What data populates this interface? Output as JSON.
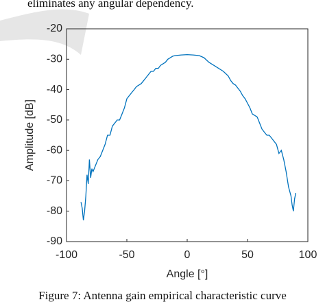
{
  "header_text": "eliminates any angular dependency.",
  "caption": "Figure 7: Antenna gain empirical characteristic curve",
  "chart_data": {
    "type": "line",
    "xlabel": "Angle [°]",
    "ylabel": "Amplitude [dB]",
    "xlim": [
      -100,
      100
    ],
    "ylim": [
      -90,
      -20
    ],
    "xticks": [
      -100,
      -50,
      0,
      50,
      100
    ],
    "yticks": [
      -90,
      -80,
      -70,
      -60,
      -50,
      -40,
      -30,
      -20
    ],
    "series": [
      {
        "color": "#0072bd",
        "x": [
          -88,
          -87,
          -86,
          -85,
          -84,
          -83,
          -82,
          -81,
          -80,
          -79,
          -78,
          -76,
          -74,
          -72,
          -70,
          -68,
          -66,
          -64,
          -62,
          -60,
          -58,
          -56,
          -54,
          -52,
          -50,
          -48,
          -46,
          -44,
          -42,
          -40,
          -38,
          -36,
          -34,
          -32,
          -30,
          -28,
          -26,
          -24,
          -22,
          -20,
          -18,
          -16,
          -14,
          -12,
          -10,
          -5,
          0,
          5,
          10,
          14,
          18,
          20,
          22,
          26,
          30,
          34,
          36,
          38,
          40,
          42,
          44,
          46,
          48,
          50,
          52,
          54,
          56,
          58,
          60,
          62,
          64,
          66,
          68,
          70,
          72,
          74,
          76,
          78,
          80,
          82,
          84,
          86,
          87,
          88,
          89,
          90
        ],
        "values": [
          -77,
          -79,
          -83,
          -80,
          -75,
          -68,
          -71,
          -63,
          -69,
          -66,
          -67,
          -65,
          -63,
          -62,
          -60,
          -58,
          -55,
          -55,
          -52,
          -51,
          -50,
          -50,
          -48,
          -46,
          -43,
          -42,
          -41,
          -40,
          -39,
          -38.5,
          -38,
          -37,
          -36,
          -35,
          -34,
          -34,
          -33,
          -33,
          -32,
          -31.5,
          -31,
          -30,
          -29.5,
          -29,
          -28.8,
          -28.6,
          -28.5,
          -28.6,
          -28.8,
          -29.5,
          -31,
          -31.5,
          -32,
          -33,
          -34,
          -35.5,
          -37,
          -38,
          -38.5,
          -39.5,
          -40.5,
          -42,
          -43,
          -44.5,
          -46,
          -48,
          -48.5,
          -49,
          -51,
          -53,
          -54,
          -55,
          -55,
          -56,
          -57,
          -58,
          -61,
          -60,
          -63,
          -67,
          -72,
          -75,
          -78,
          -80,
          -76,
          -74
        ]
      }
    ]
  }
}
